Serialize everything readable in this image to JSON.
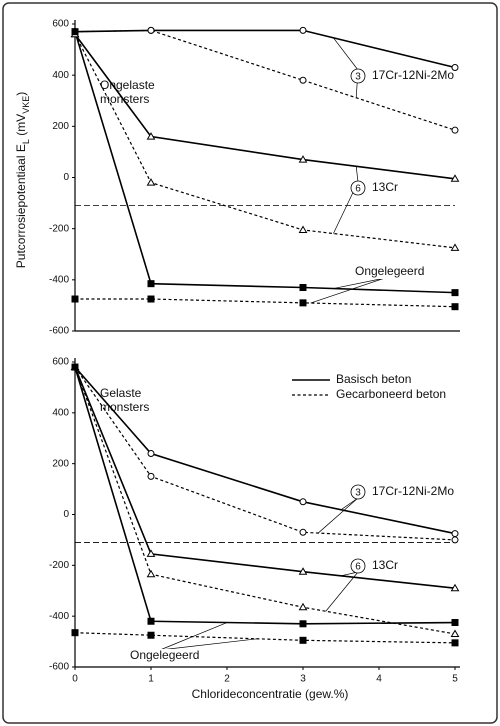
{
  "y_label_parts": [
    "Putcorrosiepotentiaal E",
    "L",
    " (mV",
    "VKE",
    ")"
  ],
  "chart_data": [
    {
      "type": "line",
      "annotation": [
        "Ongelaste",
        "monsters"
      ],
      "x": [
        0,
        1,
        3,
        5
      ],
      "xlim": [
        0,
        5
      ],
      "ylim": [
        -600,
        600
      ],
      "yticks": [
        -600,
        -400,
        -200,
        0,
        200,
        400,
        600
      ],
      "reference_line": -110,
      "series": [
        {
          "color": "#000000",
          "dash": false,
          "marker": "circle",
          "values": [
            570,
            575,
            575,
            430
          ]
        },
        {
          "color": "#000000",
          "dash": true,
          "marker": "circle",
          "values": [
            570,
            575,
            380,
            185
          ]
        },
        {
          "color": "#000000",
          "dash": false,
          "marker": "triangle",
          "values": [
            560,
            160,
            70,
            -5
          ]
        },
        {
          "color": "#000000",
          "dash": true,
          "marker": "triangle",
          "values": [
            560,
            -20,
            -205,
            -275
          ]
        },
        {
          "color": "#000000",
          "dash": false,
          "marker": "square",
          "values": [
            570,
            -415,
            -430,
            -450
          ]
        },
        {
          "color": "#000000",
          "dash": true,
          "marker": "square",
          "values": [
            -475,
            -475,
            -490,
            -505
          ]
        }
      ],
      "series_labels": [
        {
          "number": "3",
          "text": "17Cr-12Ni-2Mo"
        },
        {
          "number": "6",
          "text": "13Cr"
        },
        {
          "text": "Ongelegeerd"
        }
      ]
    },
    {
      "type": "line",
      "annotation": [
        "Gelaste",
        "monsters"
      ],
      "x": [
        0,
        1,
        3,
        5
      ],
      "xlim": [
        0,
        5
      ],
      "xticks": [
        0,
        1,
        2,
        3,
        4,
        5
      ],
      "x_label": "Chlorideconcentratie (gew.%)",
      "ylim": [
        -600,
        600
      ],
      "yticks": [
        -600,
        -400,
        -200,
        0,
        200,
        400,
        600
      ],
      "reference_line": -110,
      "legend": [
        {
          "name": "Basisch beton",
          "dash": false
        },
        {
          "name": "Gecarboneerd beton",
          "dash": true
        }
      ],
      "series": [
        {
          "color": "#000000",
          "dash": false,
          "marker": "circle",
          "values": [
            580,
            240,
            50,
            -75
          ]
        },
        {
          "color": "#000000",
          "dash": true,
          "marker": "circle",
          "values": [
            580,
            150,
            -70,
            -100
          ]
        },
        {
          "color": "#000000",
          "dash": false,
          "marker": "triangle",
          "values": [
            580,
            -155,
            -225,
            -290
          ]
        },
        {
          "color": "#000000",
          "dash": true,
          "marker": "triangle",
          "values": [
            580,
            -235,
            -365,
            -470
          ]
        },
        {
          "color": "#000000",
          "dash": false,
          "marker": "square",
          "values": [
            580,
            -420,
            -430,
            -425
          ]
        },
        {
          "color": "#000000",
          "dash": true,
          "marker": "square",
          "values": [
            -465,
            -475,
            -495,
            -505
          ]
        }
      ],
      "series_labels": [
        {
          "number": "3",
          "text": "17Cr-12Ni-2Mo"
        },
        {
          "number": "6",
          "text": "13Cr"
        },
        {
          "text": "Ongelegeerd"
        }
      ]
    }
  ]
}
